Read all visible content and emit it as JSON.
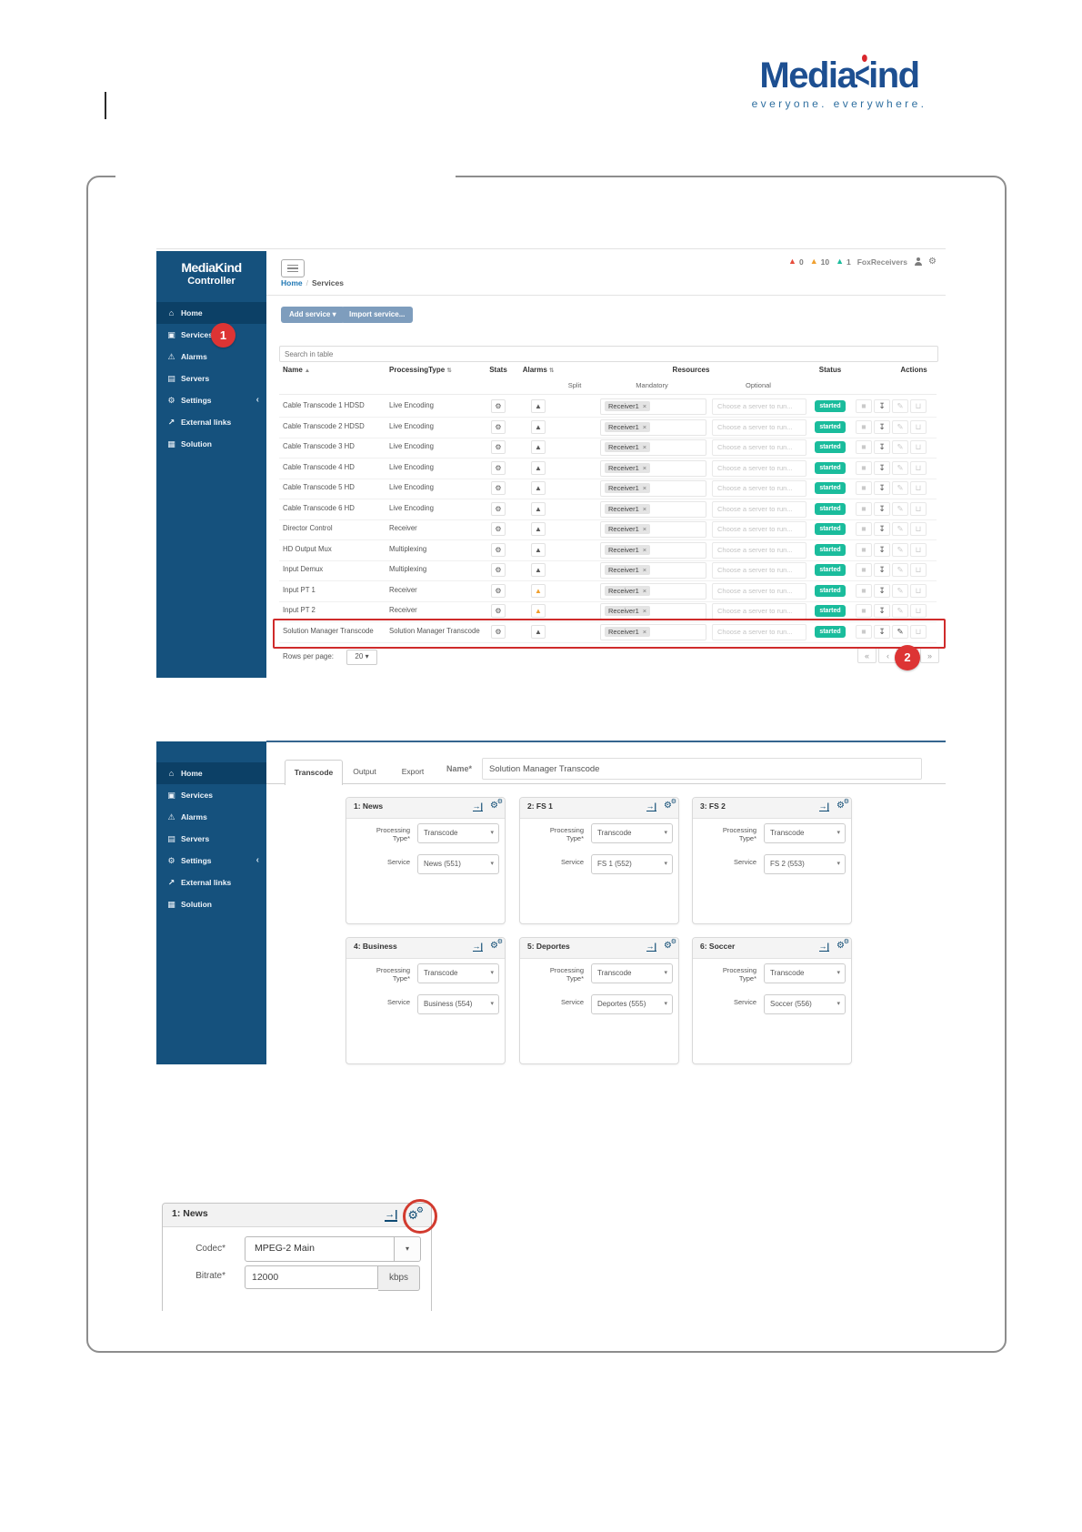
{
  "brand": {
    "media": "Media",
    "k": "<",
    "ind": "ind",
    "tagline": "everyone. everywhere."
  },
  "colors": {
    "brand_blue": "#1d4f91",
    "brand_red": "#d9262c",
    "sidebar_navy": "#15517d",
    "success_green": "#1abc9c",
    "warning_orange": "#f0a030",
    "alarm_red": "#e64c3c",
    "info_teal": "#1abc9c",
    "callout_red": "#dd3434",
    "button_steel_blue": "#7e9dbd",
    "link_blue": "#1f77b4"
  },
  "icons": {
    "home": "⌂",
    "services": "▣",
    "alarms": "⚠",
    "servers": "▤",
    "settings": "⚙",
    "external_links": "↗",
    "solution": "▦",
    "warning": "▲",
    "gear": "⚙",
    "caret": "▾",
    "sort_asc": "▲",
    "sort_both": "⇅",
    "stop": "■",
    "download": "↧",
    "edit": "✎",
    "delete": "⊔",
    "chevron_collapse": "‹",
    "signin": "→|",
    "pagination": [
      "«",
      "‹",
      "›",
      "»"
    ]
  },
  "callouts": {
    "step1": "1",
    "step2": "2"
  },
  "sidebar_items": [
    {
      "icon": "home",
      "label": "Home",
      "active": true
    },
    {
      "icon": "services",
      "label": "Services"
    },
    {
      "icon": "alarms",
      "label": "Alarms"
    },
    {
      "icon": "servers",
      "label": "Servers"
    },
    {
      "icon": "settings",
      "label": "Settings",
      "chevron": "‹"
    },
    {
      "icon": "external_links",
      "label": "External links"
    },
    {
      "icon": "solution",
      "label": "Solution"
    }
  ],
  "screenshot1": {
    "sidebar_logo": {
      "line1": "MediaKind",
      "line2": "Controller"
    },
    "topbar": {
      "breadcrumb": {
        "home": "Home",
        "separator": "/",
        "current": "Services"
      },
      "alarms": [
        {
          "count": "0",
          "level": "high"
        },
        {
          "count": "10",
          "level": "medium"
        },
        {
          "count": "1",
          "level": "info"
        }
      ],
      "user": "FoxReceivers"
    },
    "toolbar": {
      "add_service": "Add service",
      "add_service_caret": "▾",
      "import_service": "Import service...",
      "search_placeholder": "Search in table"
    },
    "table": {
      "headers": {
        "name": "Name",
        "processing_type": "ProcessingType",
        "stats": "Stats",
        "alarms": "Alarms",
        "resources": "Resources",
        "status": "Status",
        "actions": "Actions"
      },
      "subheaders": {
        "split": "Split",
        "mandatory": "Mandatory",
        "optional": "Optional"
      },
      "mandatory_chip": "Receiver1",
      "chip_remove": "×",
      "optional_placeholder": "Choose a server to run...",
      "status_started": "started",
      "rows": [
        {
          "name": "Cable Transcode 1 HDSD",
          "type": "Live Encoding",
          "alarm": "gray"
        },
        {
          "name": "Cable Transcode 2 HDSD",
          "type": "Live Encoding",
          "alarm": "gray"
        },
        {
          "name": "Cable Transcode 3 HD",
          "type": "Live Encoding",
          "alarm": "gray"
        },
        {
          "name": "Cable Transcode 4 HD",
          "type": "Live Encoding",
          "alarm": "gray"
        },
        {
          "name": "Cable Transcode 5 HD",
          "type": "Live Encoding",
          "alarm": "gray"
        },
        {
          "name": "Cable Transcode 6 HD",
          "type": "Live Encoding",
          "alarm": "gray"
        },
        {
          "name": "Director Control",
          "type": "Receiver",
          "alarm": "gray"
        },
        {
          "name": "HD Output Mux",
          "type": "Multiplexing",
          "alarm": "gray"
        },
        {
          "name": "Input Demux",
          "type": "Multiplexing",
          "alarm": "gray"
        },
        {
          "name": "Input PT 1",
          "type": "Receiver",
          "alarm": "orange"
        },
        {
          "name": "Input PT 2",
          "type": "Receiver",
          "alarm": "orange"
        },
        {
          "name": "Solution Manager Transcode",
          "type": "Solution Manager Transcode",
          "alarm": "gray",
          "highlighted": true
        }
      ],
      "rows_per_page_label": "Rows per page:",
      "rows_per_page_value": "20"
    }
  },
  "screenshot2": {
    "name_label": "Name*",
    "name_value": "Solution Manager Transcode",
    "tabs": [
      "Transcode",
      "Output",
      "Export"
    ],
    "processing_label_line1": "Processing",
    "processing_label_line2": "Type*",
    "service_label": "Service",
    "processing_value": "Transcode",
    "panels": [
      {
        "title": "1: News",
        "service": "News (551)"
      },
      {
        "title": "2: FS 1",
        "service": "FS 1 (552)"
      },
      {
        "title": "3: FS 2",
        "service": "FS 2 (553)"
      },
      {
        "title": "4: Business",
        "service": "Business (554)"
      },
      {
        "title": "5: Deportes",
        "service": "Deportes (555)"
      },
      {
        "title": "6: Soccer",
        "service": "Soccer (556)"
      }
    ]
  },
  "screenshot3": {
    "title": "1: News",
    "codec_label": "Codec*",
    "codec_value": "MPEG-2 Main",
    "bitrate_label": "Bitrate*",
    "bitrate_value": "12000",
    "bitrate_unit": "kbps"
  }
}
